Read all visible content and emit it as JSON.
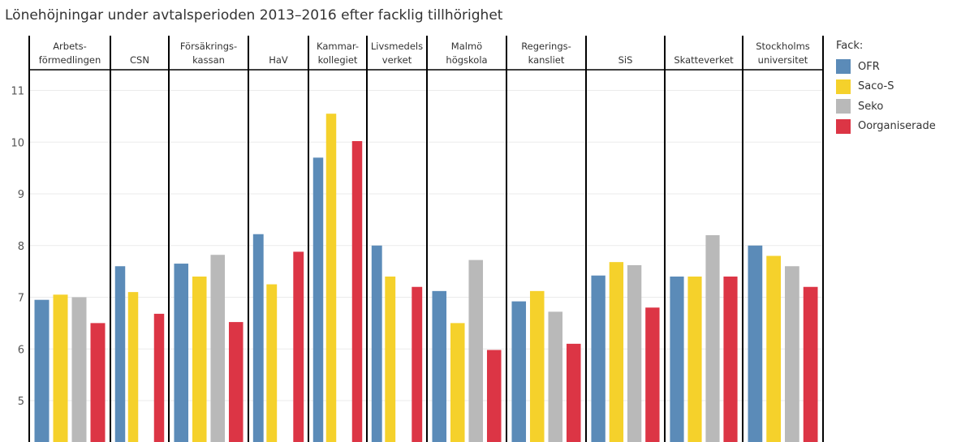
{
  "title": "Lönehöjningar under avtalsperioden 2013–2016 efter facklig tillhörighet",
  "legend": {
    "title": "Fack:",
    "items": [
      {
        "label": "OFR",
        "color": "#5b8bb8"
      },
      {
        "label": "Saco-S",
        "color": "#f5d12b"
      },
      {
        "label": "Seko",
        "color": "#b9b9b9"
      },
      {
        "label": "Oorganiserade",
        "color": "#dc3545"
      }
    ]
  },
  "chart_data": {
    "type": "bar",
    "title": "Lönehöjningar under avtalsperioden 2013–2016 efter facklig tillhörighet",
    "xlabel": "",
    "ylabel": "",
    "ylim": [
      4.2,
      11.4
    ],
    "yticks": [
      5,
      6,
      7,
      8,
      9,
      10,
      11
    ],
    "grid": true,
    "legend_position": "right",
    "categories": [
      [
        "Arbets-",
        "förmedlingen"
      ],
      [
        "CSN"
      ],
      [
        "Försäkrings-",
        "kassan"
      ],
      [
        "HaV"
      ],
      [
        "Kammar-",
        "kollegiet"
      ],
      [
        "Livsmedels",
        "verket"
      ],
      [
        "Malmö",
        "högskola"
      ],
      [
        "Regerings-",
        "kansliet"
      ],
      [
        "SiS"
      ],
      [
        "Skatteverket"
      ],
      [
        "Stockholms",
        "universitet"
      ]
    ],
    "series": [
      {
        "name": "OFR",
        "color": "#5b8bb8",
        "values": [
          6.95,
          7.6,
          7.65,
          8.22,
          9.7,
          8.0,
          7.12,
          6.92,
          7.42,
          7.4,
          8.0
        ]
      },
      {
        "name": "Saco-S",
        "color": "#f5d12b",
        "values": [
          7.05,
          7.1,
          7.4,
          7.25,
          10.55,
          7.4,
          6.5,
          7.12,
          7.68,
          7.4,
          7.8
        ]
      },
      {
        "name": "Seko",
        "color": "#b9b9b9",
        "values": [
          7.0,
          null,
          7.82,
          null,
          null,
          null,
          7.72,
          6.72,
          7.62,
          8.2,
          7.6
        ]
      },
      {
        "name": "Oorganiserade",
        "color": "#dc3545",
        "values": [
          6.5,
          6.68,
          6.52,
          7.88,
          10.02,
          7.2,
          5.98,
          6.1,
          6.8,
          7.4,
          7.2
        ]
      }
    ]
  }
}
